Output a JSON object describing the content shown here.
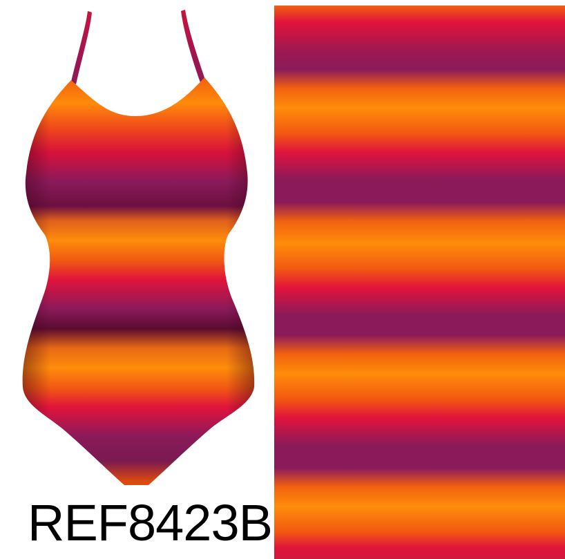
{
  "product": {
    "ref_code": "REF8423B"
  },
  "colors": {
    "orange": "#ff8c0a",
    "deep_orange": "#f25a12",
    "red": "#e0143c",
    "crimson": "#c8143f",
    "magenta": "#8a1a5a",
    "plum": "#6c1040",
    "dark_plum": "#4a0a2a"
  },
  "icons": {
    "swimsuit_illustration": "one-piece-swimsuit-illustration",
    "fabric_swatch": "striped-fabric-swatch"
  }
}
